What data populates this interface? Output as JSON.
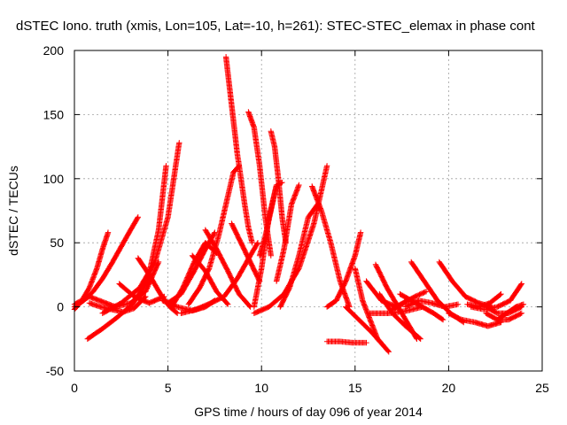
{
  "chart_data": {
    "type": "scatter",
    "title": "dSTEC Iono. truth (xmis, Lon=105, Lat=-10, h=261): STEC-STEC_elemax in phase cont",
    "xlabel": "GPS time / hours of day 096 of year 2014",
    "ylabel": "dSTEC  / TECUs",
    "xlim": [
      0,
      25
    ],
    "ylim": [
      -50,
      200
    ],
    "x_ticks": [
      0,
      5,
      10,
      15,
      20,
      25
    ],
    "x_tick_labels": [
      "0",
      "5",
      "10",
      "15",
      "20",
      "25"
    ],
    "y_ticks": [
      -50,
      0,
      50,
      100,
      150,
      200
    ],
    "y_tick_labels": [
      "-50",
      "0",
      "50",
      "100",
      "150",
      "200"
    ],
    "grid": true,
    "marker": "plus",
    "color": "#ff0000",
    "series": [
      {
        "x": [
          0.0,
          0.4,
          0.8,
          1.2,
          1.5,
          1.8
        ],
        "y": [
          -2,
          5,
          15,
          30,
          45,
          58
        ]
      },
      {
        "x": [
          0.0,
          0.5,
          1.0,
          1.5,
          2.0,
          2.5,
          3.0,
          3.4
        ],
        "y": [
          0,
          5,
          12,
          22,
          34,
          47,
          60,
          70
        ]
      },
      {
        "x": [
          0.0,
          0.8,
          1.5,
          2.2,
          3.0,
          3.8,
          4.5
        ],
        "y": [
          2,
          8,
          4,
          0,
          3,
          12,
          35
        ]
      },
      {
        "x": [
          0.7,
          1.5,
          2.3,
          3.1,
          3.9,
          4.5,
          4.9
        ],
        "y": [
          -25,
          -17,
          -8,
          2,
          20,
          60,
          110
        ]
      },
      {
        "x": [
          0.8,
          1.4,
          2.0,
          2.6,
          3.2,
          3.8
        ],
        "y": [
          3,
          0,
          -2,
          -4,
          -1,
          8
        ]
      },
      {
        "x": [
          1.5,
          2.5,
          3.5,
          4.3,
          5.0,
          5.6
        ],
        "y": [
          -5,
          3,
          15,
          35,
          70,
          128
        ]
      },
      {
        "x": [
          2.4,
          3.2,
          4.0,
          4.8
        ],
        "y": [
          18,
          8,
          3,
          8
        ]
      },
      {
        "x": [
          3.4,
          4.0,
          4.6,
          5.1,
          5.5
        ],
        "y": [
          38,
          25,
          10,
          0,
          -5
        ]
      },
      {
        "x": [
          4.7,
          5.5,
          6.3,
          7.0,
          7.5
        ],
        "y": [
          5,
          0,
          -3,
          0,
          5
        ]
      },
      {
        "x": [
          5.0,
          5.7,
          6.4,
          7.0,
          7.5
        ],
        "y": [
          3,
          10,
          28,
          45,
          58
        ]
      },
      {
        "x": [
          5.2,
          5.8,
          6.4,
          7.0,
          7.6
        ],
        "y": [
          0,
          15,
          35,
          50,
          42
        ]
      },
      {
        "x": [
          6.3,
          7.0,
          7.6,
          8.2
        ],
        "y": [
          40,
          28,
          12,
          2
        ]
      },
      {
        "x": [
          5.7,
          6.5,
          7.3,
          8.0,
          8.7,
          9.4,
          9.8
        ],
        "y": [
          -5,
          -2,
          3,
          8,
          22,
          40,
          50
        ]
      },
      {
        "x": [
          6.1,
          6.7,
          7.2,
          7.7,
          8.1,
          8.5,
          8.8
        ],
        "y": [
          2,
          15,
          30,
          55,
          80,
          105,
          110
        ]
      },
      {
        "x": [
          7.0,
          7.6,
          8.2,
          8.8,
          9.4
        ],
        "y": [
          60,
          45,
          28,
          10,
          0
        ]
      },
      {
        "x": [
          8.1,
          8.3,
          8.5,
          8.7,
          8.9,
          9.1,
          9.3,
          9.5
        ],
        "y": [
          195,
          170,
          145,
          120,
          100,
          80,
          62,
          50
        ]
      },
      {
        "x": [
          8.4,
          8.9,
          9.4,
          9.9
        ],
        "y": [
          65,
          50,
          35,
          20
        ]
      },
      {
        "x": [
          9.3,
          9.6,
          9.9,
          10.2,
          10.5
        ],
        "y": [
          152,
          140,
          110,
          70,
          40
        ]
      },
      {
        "x": [
          9.6,
          10.0,
          10.4,
          10.8,
          11.1
        ],
        "y": [
          0,
          30,
          70,
          95,
          97
        ]
      },
      {
        "x": [
          9.9,
          10.2,
          10.5,
          10.8
        ],
        "y": [
          40,
          55,
          75,
          95
        ]
      },
      {
        "x": [
          10.5,
          10.7,
          10.9,
          11.1,
          11.3
        ],
        "y": [
          137,
          125,
          100,
          70,
          50
        ]
      },
      {
        "x": [
          10.8,
          11.2,
          11.6,
          12.0
        ],
        "y": [
          20,
          45,
          80,
          95
        ]
      },
      {
        "x": [
          9.6,
          10.4,
          11.2,
          12.0,
          12.8,
          13.5
        ],
        "y": [
          -5,
          0,
          10,
          30,
          65,
          110
        ]
      },
      {
        "x": [
          11.0,
          11.5,
          12.0,
          12.5,
          13.0
        ],
        "y": [
          0,
          15,
          40,
          70,
          80
        ]
      },
      {
        "x": [
          12.7,
          13.2,
          13.7,
          14.2,
          14.7
        ],
        "y": [
          94,
          75,
          50,
          20,
          0
        ]
      },
      {
        "x": [
          13.5,
          14.0,
          14.5,
          15.0,
          15.3
        ],
        "y": [
          0,
          5,
          20,
          40,
          58
        ]
      },
      {
        "x": [
          13.5,
          14.2,
          14.9,
          15.6
        ],
        "y": [
          -27,
          -27,
          -28,
          -28
        ]
      },
      {
        "x": [
          15.0,
          15.4,
          15.8,
          16.2,
          16.5
        ],
        "y": [
          30,
          5,
          -10,
          -25,
          -30
        ]
      },
      {
        "x": [
          14.5,
          15.2,
          15.9,
          16.8
        ],
        "y": [
          0,
          -10,
          -20,
          -35
        ]
      },
      {
        "x": [
          15.6,
          16.4,
          17.2,
          17.8
        ],
        "y": [
          20,
          5,
          0,
          5
        ]
      },
      {
        "x": [
          16.1,
          16.7,
          17.3,
          17.9,
          18.3
        ],
        "y": [
          33,
          15,
          0,
          -15,
          -25
        ]
      },
      {
        "x": [
          16.3,
          17.0,
          17.7,
          18.5
        ],
        "y": [
          10,
          -5,
          -15,
          -25
        ]
      },
      {
        "x": [
          15.8,
          16.8,
          17.8,
          18.6
        ],
        "y": [
          -5,
          -5,
          -3,
          0
        ]
      },
      {
        "x": [
          17.0,
          17.6,
          18.2,
          18.8
        ],
        "y": [
          -2,
          3,
          8,
          12
        ]
      },
      {
        "x": [
          17.4,
          18.0,
          18.6,
          19.2,
          19.7
        ],
        "y": [
          10,
          5,
          0,
          -5,
          -10
        ]
      },
      {
        "x": [
          17.7,
          18.4,
          19.1,
          19.8,
          20.5
        ],
        "y": [
          0,
          5,
          3,
          0,
          2
        ]
      },
      {
        "x": [
          18.0,
          18.7,
          19.4,
          20.1,
          20.8
        ],
        "y": [
          35,
          20,
          5,
          -5,
          -12
        ]
      },
      {
        "x": [
          19.5,
          20.2,
          20.9,
          21.6,
          22.3
        ],
        "y": [
          35,
          20,
          8,
          3,
          0
        ]
      },
      {
        "x": [
          20.0,
          20.7,
          21.4,
          22.1,
          22.8
        ],
        "y": [
          -5,
          -10,
          -12,
          -15,
          -12
        ]
      },
      {
        "x": [
          21.0,
          21.6,
          22.2,
          22.8
        ],
        "y": [
          2,
          0,
          3,
          10
        ]
      },
      {
        "x": [
          21.2,
          21.9,
          22.6,
          23.3,
          23.9
        ],
        "y": [
          0,
          -2,
          0,
          5,
          18
        ]
      },
      {
        "x": [
          22.0,
          22.6,
          23.2,
          23.9
        ],
        "y": [
          -5,
          -10,
          -10,
          -5
        ]
      },
      {
        "x": [
          22.0,
          22.6,
          23.2,
          23.9
        ],
        "y": [
          0,
          -5,
          -5,
          0
        ]
      },
      {
        "x": [
          22.6,
          23.1,
          23.6,
          24.0
        ],
        "y": [
          -10,
          -5,
          0,
          2
        ]
      }
    ]
  }
}
